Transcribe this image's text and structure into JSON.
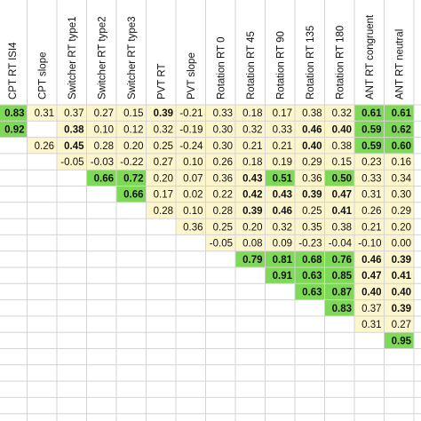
{
  "table": {
    "cell_fill": "#fdf6cc",
    "headers": [
      "CPT RT ISI4",
      "CPT slope",
      "Switcher RT type1",
      "Switcher RT type2",
      "Switcher RT type3",
      "PVT RT",
      "PVT slope",
      "Rotation RT 0",
      "Rotation RT 45",
      "Rotation RT 90",
      "Rotation RT 135",
      "Rotation RT 180",
      "ANT RT congruent",
      "ANT RT neutral"
    ],
    "rows": [
      [
        {
          "text": "0.83",
          "bold": true,
          "fill": "#7ed957"
        },
        "0.31",
        "0.37",
        "0.27",
        "0.15",
        {
          "text": "0.39",
          "bold": true
        },
        "-0.21",
        "0.33",
        "0.18",
        "0.17",
        "0.38",
        "0.32",
        {
          "text": "0.61",
          "bold": true,
          "fill": "#7ed957"
        },
        {
          "text": "0.61",
          "bold": true,
          "fill": "#7ed957"
        }
      ],
      [
        {
          "text": "0.92",
          "bold": true,
          "fill": "#7ed957"
        },
        null,
        {
          "text": "0.38",
          "bold": true
        },
        "0.10",
        "0.12",
        "0.32",
        "-0.19",
        "0.30",
        "0.32",
        "0.33",
        {
          "text": "0.46",
          "bold": true
        },
        {
          "text": "0.40",
          "bold": true
        },
        {
          "text": "0.59",
          "bold": true,
          "fill": "#7ed957"
        },
        {
          "text": "0.62",
          "bold": true,
          "fill": "#7ed957"
        }
      ],
      [
        null,
        "0.26",
        {
          "text": "0.45",
          "bold": true
        },
        "0.28",
        "0.20",
        "0.25",
        "-0.24",
        "0.30",
        "0.21",
        "0.21",
        {
          "text": "0.40",
          "bold": true
        },
        "0.38",
        {
          "text": "0.59",
          "bold": true,
          "fill": "#7ed957"
        },
        {
          "text": "0.60",
          "bold": true,
          "fill": "#7ed957"
        }
      ],
      [
        null,
        null,
        "-0.05",
        "-0.03",
        "-0.22",
        "0.27",
        "0.10",
        "0.26",
        "0.18",
        "0.19",
        "0.29",
        "0.15",
        "0.23",
        "0.16"
      ],
      [
        null,
        null,
        null,
        {
          "text": "0.66",
          "bold": true,
          "fill": "#7ed957"
        },
        {
          "text": "0.72",
          "bold": true,
          "fill": "#7ed957"
        },
        "0.20",
        "0.07",
        "0.36",
        {
          "text": "0.43",
          "bold": true
        },
        {
          "text": "0.51",
          "bold": true,
          "fill": "#7ed957"
        },
        "0.36",
        {
          "text": "0.50",
          "bold": true,
          "fill": "#7ed957"
        },
        "0.33",
        "0.34"
      ],
      [
        null,
        null,
        null,
        null,
        {
          "text": "0.66",
          "bold": true,
          "fill": "#7ed957"
        },
        "0.17",
        "0.02",
        "0.22",
        {
          "text": "0.42",
          "bold": true
        },
        {
          "text": "0.43",
          "bold": true
        },
        {
          "text": "0.39",
          "bold": true
        },
        {
          "text": "0.47",
          "bold": true
        },
        "0.31",
        "0.30"
      ],
      [
        null,
        null,
        null,
        null,
        null,
        "0.28",
        "0.10",
        "0.28",
        {
          "text": "0.39",
          "bold": true
        },
        {
          "text": "0.46",
          "bold": true
        },
        "0.25",
        {
          "text": "0.41",
          "bold": true
        },
        "0.26",
        "0.29"
      ],
      [
        null,
        null,
        null,
        null,
        null,
        null,
        "0.36",
        "0.25",
        "0.20",
        "0.32",
        "0.35",
        "0.38",
        "0.21",
        "0.20"
      ],
      [
        null,
        null,
        null,
        null,
        null,
        null,
        null,
        "-0.05",
        "0.08",
        "0.09",
        "-0.23",
        "-0.04",
        "-0.10",
        "0.00"
      ],
      [
        null,
        null,
        null,
        null,
        null,
        null,
        null,
        null,
        {
          "text": "0.79",
          "bold": true,
          "fill": "#7ed957"
        },
        {
          "text": "0.81",
          "bold": true,
          "fill": "#7ed957"
        },
        {
          "text": "0.68",
          "bold": true,
          "fill": "#7ed957"
        },
        {
          "text": "0.76",
          "bold": true,
          "fill": "#7ed957"
        },
        {
          "text": "0.46",
          "bold": true
        },
        {
          "text": "0.39",
          "bold": true
        }
      ],
      [
        null,
        null,
        null,
        null,
        null,
        null,
        null,
        null,
        null,
        {
          "text": "0.91",
          "bold": true,
          "fill": "#7ed957"
        },
        {
          "text": "0.63",
          "bold": true,
          "fill": "#7ed957"
        },
        {
          "text": "0.85",
          "bold": true,
          "fill": "#7ed957"
        },
        {
          "text": "0.47",
          "bold": true
        },
        {
          "text": "0.41",
          "bold": true
        }
      ],
      [
        null,
        null,
        null,
        null,
        null,
        null,
        null,
        null,
        null,
        null,
        {
          "text": "0.63",
          "bold": true,
          "fill": "#7ed957"
        },
        {
          "text": "0.87",
          "bold": true,
          "fill": "#7ed957"
        },
        {
          "text": "0.40",
          "bold": true
        },
        {
          "text": "0.40",
          "bold": true
        }
      ],
      [
        null,
        null,
        null,
        null,
        null,
        null,
        null,
        null,
        null,
        null,
        null,
        {
          "text": "0.83",
          "bold": true,
          "fill": "#7ed957"
        },
        "0.37",
        {
          "text": "0.39",
          "bold": true
        }
      ],
      [
        null,
        null,
        null,
        null,
        null,
        null,
        null,
        null,
        null,
        null,
        null,
        null,
        "0.31",
        "0.27"
      ],
      [
        null,
        null,
        null,
        null,
        null,
        null,
        null,
        null,
        null,
        null,
        null,
        null,
        null,
        {
          "text": "0.95",
          "bold": true,
          "fill": "#7ed957"
        }
      ]
    ]
  }
}
